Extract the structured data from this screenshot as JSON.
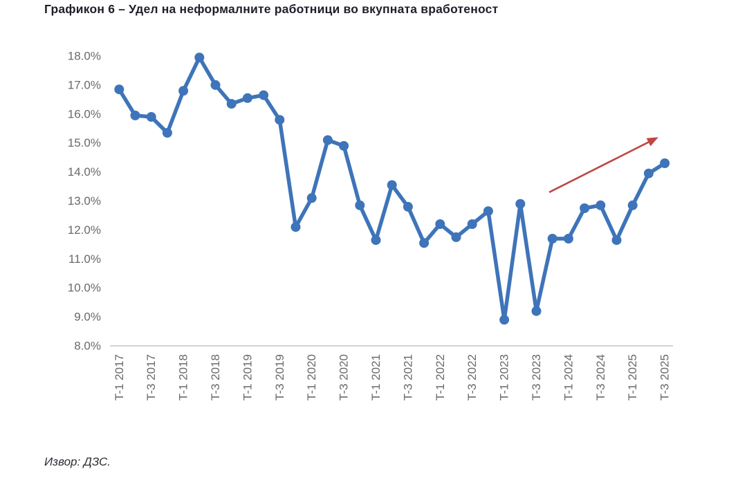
{
  "title": "Графикон 6 – Удел на неформалните работници во вкупната вработеност",
  "source": "Извор: ДЗС.",
  "colors": {
    "line": "#3e74b9",
    "marker": "#3e74b9",
    "trend_arrow": "#bf4742",
    "axis_line": "#d2d2d2",
    "tick_label": "#696969",
    "title_text": "#1f1f2b",
    "background": "#ffffff"
  },
  "chart_data": {
    "type": "line",
    "title": "Графикон 6 – Удел на неформалните работници во вкупната вработеност",
    "xlabel": "",
    "ylabel": "",
    "ylim": [
      8,
      18
    ],
    "grid": false,
    "legend": false,
    "y_ticks": [
      "18.0%",
      "17.0%",
      "16.0%",
      "15.0%",
      "14.0%",
      "13.0%",
      "12.0%",
      "11.0%",
      "10.0%",
      "9.0%",
      "8.0%"
    ],
    "y_tick_values": [
      18,
      17,
      16,
      15,
      14,
      13,
      12,
      11,
      10,
      9,
      8
    ],
    "x": [
      "T-1 2017",
      "T-2 2017",
      "T-3 2017",
      "T-4 2017",
      "T-1 2018",
      "T-2 2018",
      "T-3 2018",
      "T-4 2018",
      "T-1 2019",
      "T-2 2019",
      "T-3 2019",
      "T-4 2019",
      "T-1 2020",
      "T-2 2020",
      "T-3 2020",
      "T-4 2020",
      "T-1 2021",
      "T-2 2021",
      "T-3 2021",
      "T-4 2021",
      "T-1 2022",
      "T-2 2022",
      "T-3 2022",
      "T-4 2022",
      "T-1 2023",
      "T-2 2023",
      "T-3 2023",
      "T-4 2023",
      "T-1 2024",
      "T-2 2024",
      "T-3 2024",
      "T-4 2024",
      "T-1 2025",
      "T-2 2025",
      "T-3 2025"
    ],
    "x_tick_labels": [
      "T-1 2017",
      "T-3 2017",
      "T-1 2018",
      "T-3 2018",
      "T-1 2019",
      "T-3 2019",
      "T-1 2020",
      "T-3 2020",
      "T-1 2021",
      "T-3 2021",
      "T-1 2022",
      "T-3 2022",
      "T-1 2023",
      "T-3 2023",
      "T-1 2024",
      "T-3 2024",
      "T-1 2025",
      "T-3 2025"
    ],
    "series": [
      {
        "name": "Удел на неформалните работници во вкупната вработеност",
        "values": [
          16.85,
          15.95,
          15.9,
          15.35,
          16.8,
          17.95,
          17.0,
          16.35,
          16.55,
          16.65,
          15.8,
          12.1,
          13.1,
          15.1,
          14.9,
          12.85,
          11.65,
          13.55,
          12.8,
          11.55,
          12.2,
          11.75,
          12.2,
          12.65,
          8.9,
          12.9,
          9.2,
          11.7,
          11.7,
          12.75,
          12.85,
          11.65,
          12.85,
          13.95,
          14.3
        ]
      }
    ],
    "annotation_arrow": {
      "description": "upward red trend arrow over 2023-2025 recovery",
      "from": {
        "x_index": 26.8,
        "value": 13.3
      },
      "to": {
        "x_index": 33.6,
        "value": 15.2
      }
    }
  }
}
